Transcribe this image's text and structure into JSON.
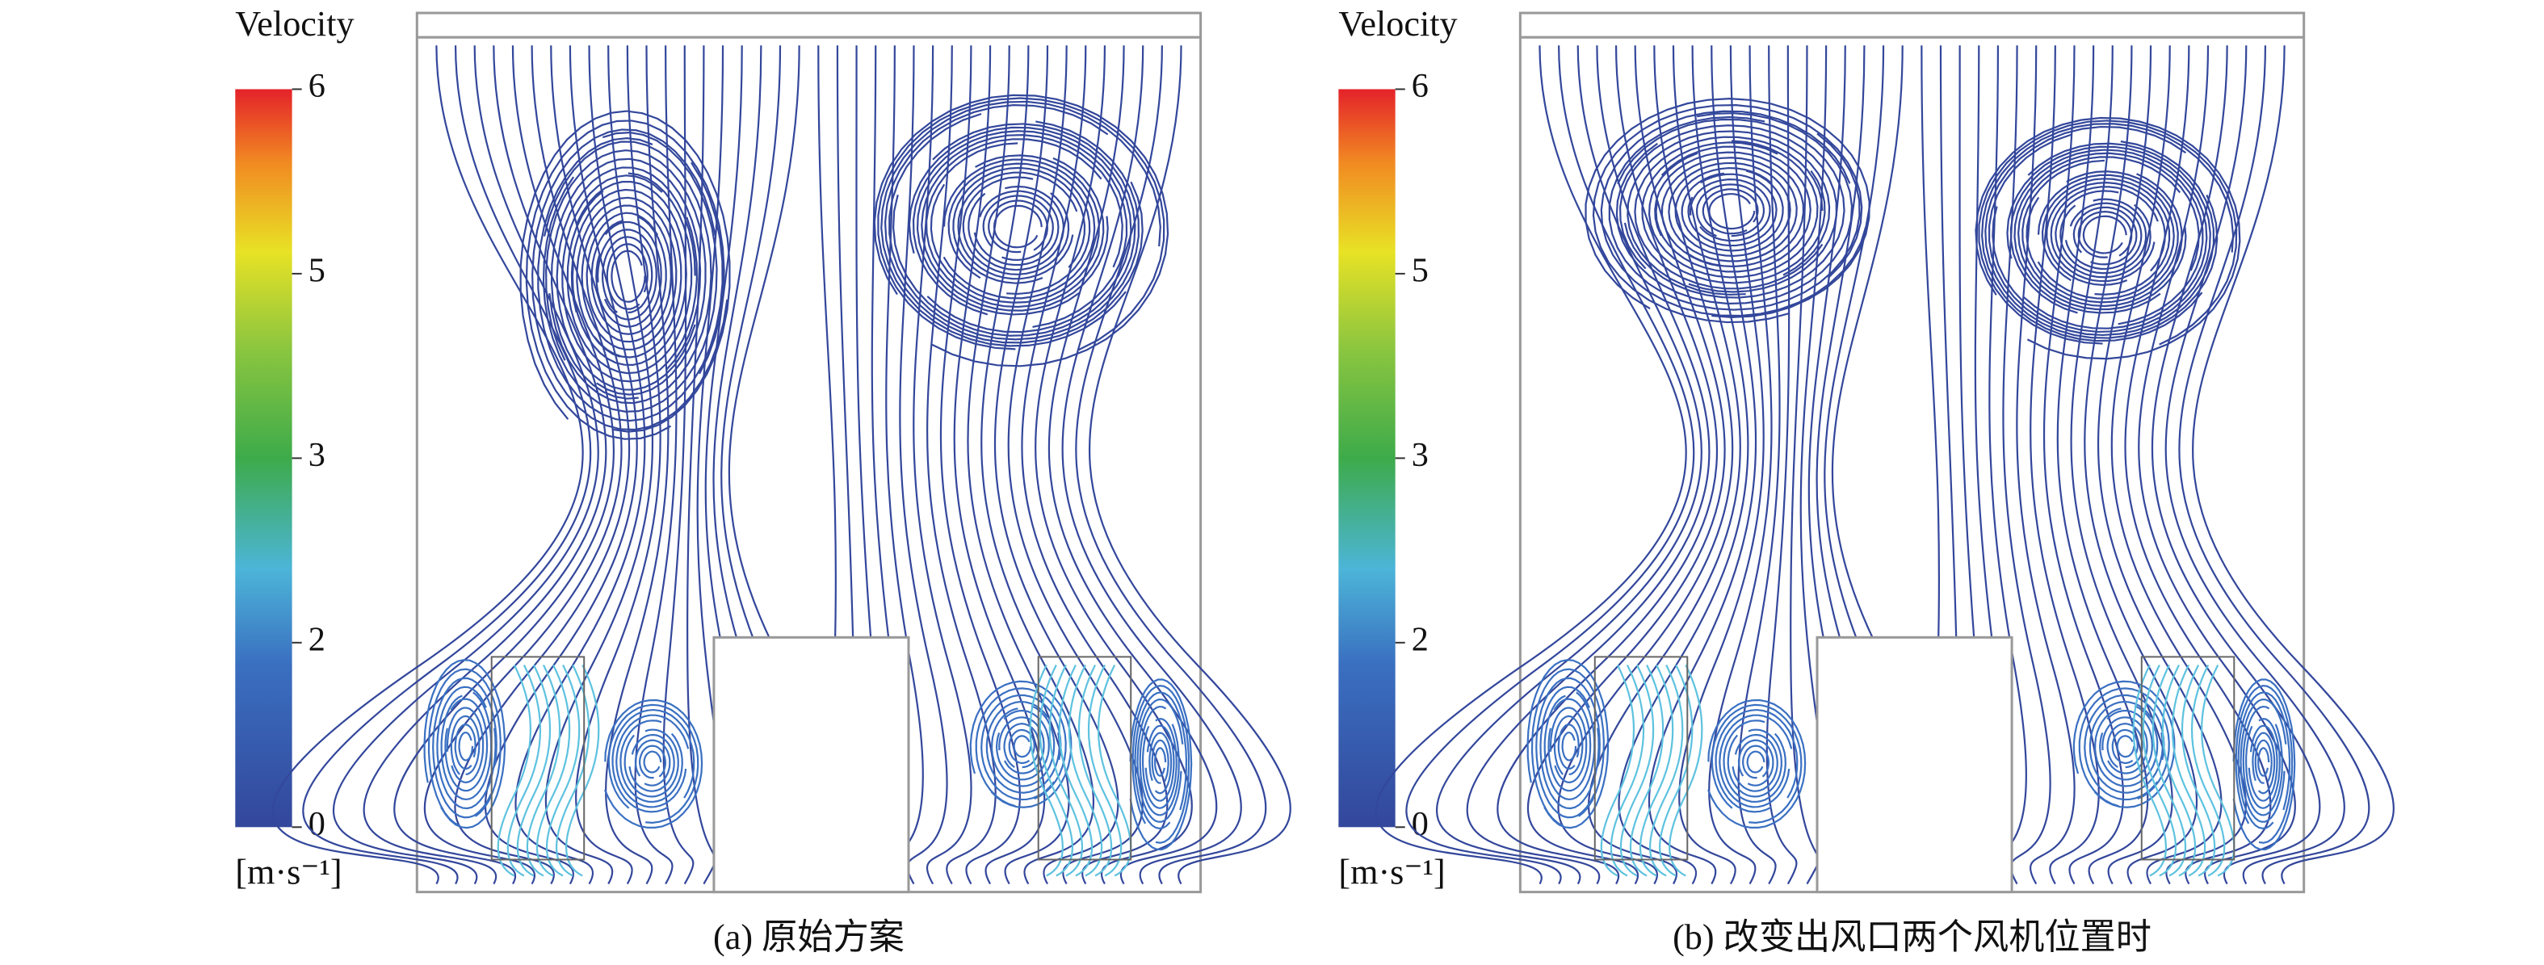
{
  "panels": [
    {
      "legend_title": "Velocity",
      "ticks": [
        "6",
        "5",
        "3",
        "2",
        "0"
      ],
      "unit": "[m·s⁻¹]",
      "caption": "(a) 原始方案"
    },
    {
      "legend_title": "Velocity",
      "ticks": [
        "6",
        "5",
        "3",
        "2",
        "0"
      ],
      "unit": "[m·s⁻¹]",
      "caption": "(b) 改变出风口两个风机位置时"
    }
  ]
}
